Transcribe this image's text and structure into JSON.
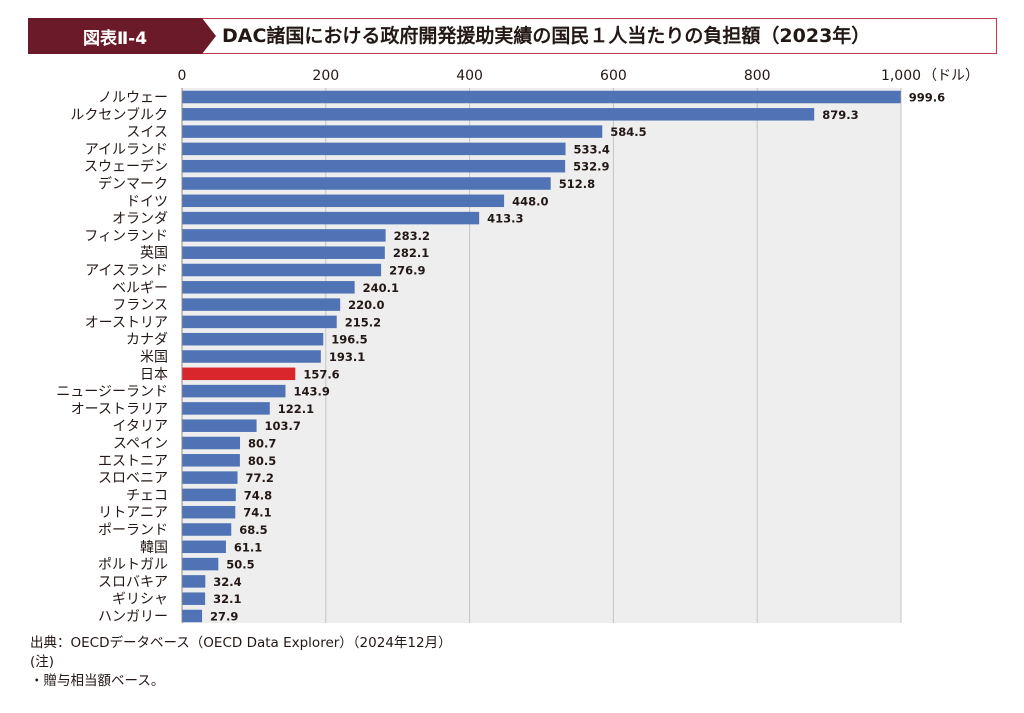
{
  "figure_label": "図表Ⅱ-4",
  "title": "DAC諸国における政府開発援助実績の国民１人当たりの負担額（2023年）",
  "unit_label": "（ドル）",
  "footer": {
    "source": "出典：OECDデータベース（OECD Data Explorer）（2024年12月）",
    "note_heading": "(注)",
    "note": "・贈与相当額ベース。"
  },
  "colors": {
    "bar": "#4f73b4",
    "highlight_bar": "#d9262c",
    "plot_bg": "#eeeeee",
    "grid": "#c4c4c4",
    "header_fill": "#6b1a2a",
    "header_border": "#c23a4e"
  },
  "chart_data": {
    "type": "bar",
    "orientation": "horizontal",
    "title": "DAC諸国における政府開発援助実績の国民１人当たりの負担額（2023年）",
    "xlabel": "（ドル）",
    "ylabel": "",
    "xlim": [
      0,
      1000
    ],
    "x_ticks": [
      0,
      200,
      400,
      600,
      800,
      1000
    ],
    "x_tick_labels": [
      "0",
      "200",
      "400",
      "600",
      "800",
      "1,000"
    ],
    "grid": true,
    "highlight": "日本",
    "categories": [
      "ノルウェー",
      "ルクセンブルク",
      "スイス",
      "アイルランド",
      "スウェーデン",
      "デンマーク",
      "ドイツ",
      "オランダ",
      "フィンランド",
      "英国",
      "アイスランド",
      "ベルギー",
      "フランス",
      "オーストリア",
      "カナダ",
      "米国",
      "日本",
      "ニュージーランド",
      "オーストラリア",
      "イタリア",
      "スペイン",
      "エストニア",
      "スロベニア",
      "チェコ",
      "リトアニア",
      "ポーランド",
      "韓国",
      "ポルトガル",
      "スロバキア",
      "ギリシャ",
      "ハンガリー"
    ],
    "values": [
      999.6,
      879.3,
      584.5,
      533.4,
      532.9,
      512.8,
      448.0,
      413.3,
      283.2,
      282.1,
      276.9,
      240.1,
      220.0,
      215.2,
      196.5,
      193.1,
      157.6,
      143.9,
      122.1,
      103.7,
      80.7,
      80.5,
      77.2,
      74.8,
      74.1,
      68.5,
      61.1,
      50.5,
      32.4,
      32.1,
      27.9
    ],
    "value_labels": [
      "999.6",
      "879.3",
      "584.5",
      "533.4",
      "532.9",
      "512.8",
      "448.0",
      "413.3",
      "283.2",
      "282.1",
      "276.9",
      "240.1",
      "220.0",
      "215.2",
      "196.5",
      "193.1",
      "157.6",
      "143.9",
      "122.1",
      "103.7",
      "80.7",
      "80.5",
      "77.2",
      "74.8",
      "74.1",
      "68.5",
      "61.1",
      "50.5",
      "32.4",
      "32.1",
      "27.9"
    ]
  }
}
